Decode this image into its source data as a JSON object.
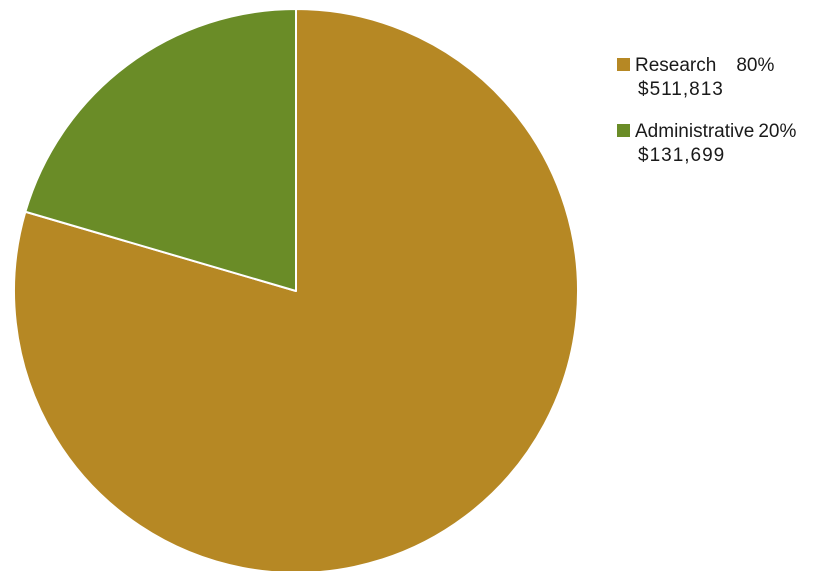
{
  "chart_data": {
    "type": "pie",
    "slices": [
      {
        "label": "Research",
        "percent_label": "80%",
        "amount_label": "$511,813",
        "value": 511813,
        "color": "#b68824"
      },
      {
        "label": "Administrative",
        "percent_label": "20%",
        "amount_label": "$131,699",
        "value": 131699,
        "color": "#6a8c27"
      }
    ],
    "start_angle_deg": 0,
    "direction": "clockwise",
    "legend_position": "right"
  }
}
